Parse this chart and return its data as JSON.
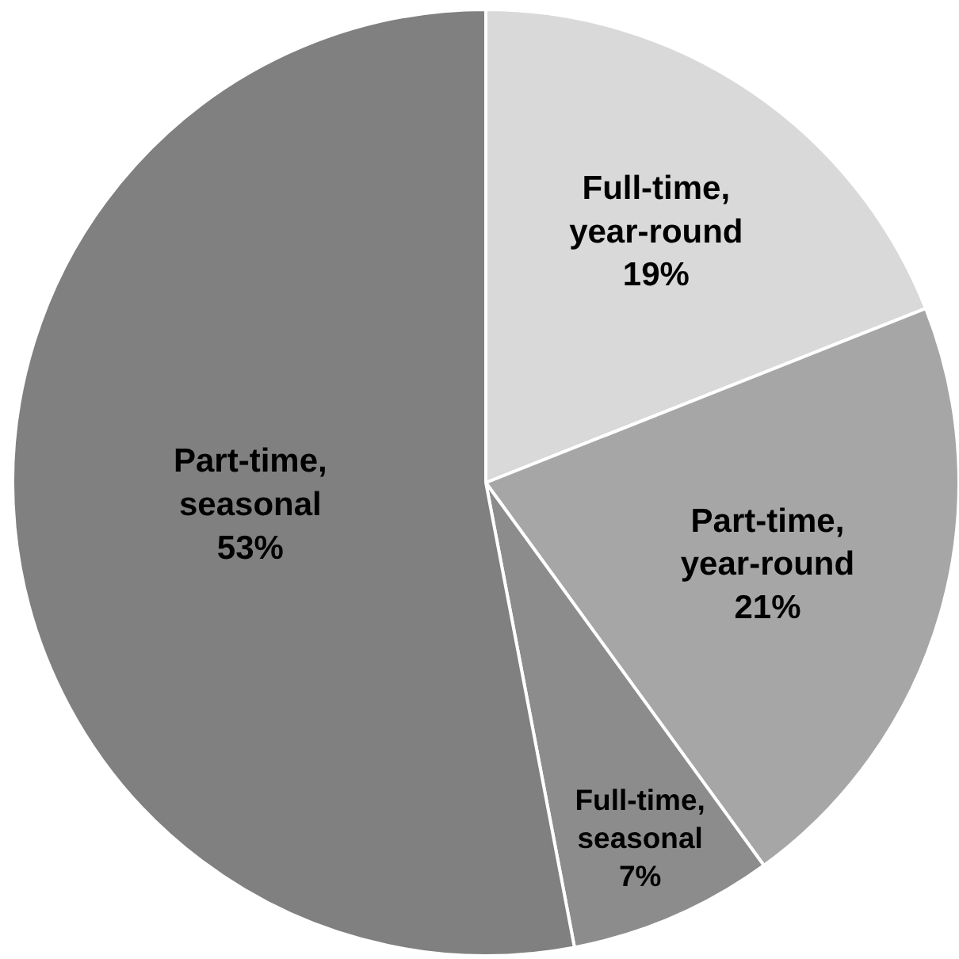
{
  "chart_data": {
    "type": "pie",
    "categories": [
      "Full-time,\nyear-round",
      "Part-time,\nyear-round",
      "Full-time,\nseasonal",
      "Part-time,\nseasonal"
    ],
    "values": [
      19,
      21,
      7,
      53
    ],
    "value_labels": [
      "19%",
      "21%",
      "7%",
      "53%"
    ],
    "colors": [
      "#d9d9d9",
      "#a6a6a6",
      "#8c8c8c",
      "#808080"
    ]
  }
}
